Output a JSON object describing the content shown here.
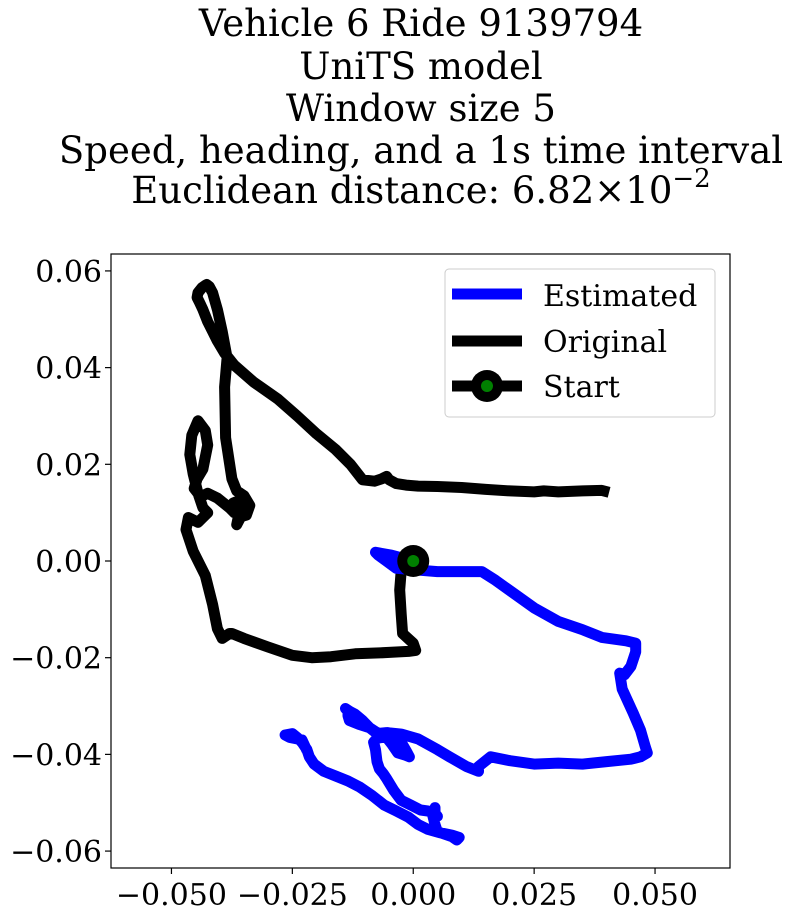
{
  "chart_data": {
    "type": "line",
    "title_lines": [
      "Vehicle 6 Ride 9139794",
      "UniTS model",
      "Window size 5",
      "Speed, heading, and a 1s time interval"
    ],
    "metric": {
      "label": "Euclidean distance: ",
      "mantissa": "6.82",
      "times": "×",
      "base": "10",
      "exponent": "−2"
    },
    "xlabel": "",
    "ylabel": "",
    "xlim": [
      -0.0625,
      0.0655
    ],
    "ylim": [
      -0.0635,
      0.0635
    ],
    "x_ticks": [
      -0.05,
      -0.025,
      0.0,
      0.025,
      0.05
    ],
    "x_tick_labels": [
      "−0.050",
      "−0.025",
      "0.000",
      "0.025",
      "0.050"
    ],
    "y_ticks": [
      -0.06,
      -0.04,
      -0.02,
      0.0,
      0.02,
      0.04,
      0.06
    ],
    "y_tick_labels": [
      "−0.06",
      "−0.04",
      "−0.02",
      "0.00",
      "0.02",
      "0.04",
      "0.06"
    ],
    "grid": false,
    "legend_position": "upper right",
    "colors": {
      "estimated": "#0000ff",
      "original": "#000000",
      "start_marker": "#008000"
    },
    "series": [
      {
        "name": "Original",
        "color": "#000000",
        "x": [
          0.0,
          -0.0025,
          -0.0028,
          -0.0025,
          -0.0022,
          0.0,
          0.0005,
          -0.001,
          -0.003,
          -0.007,
          -0.012,
          -0.017,
          -0.021,
          -0.025,
          -0.03,
          -0.035,
          -0.0375,
          -0.038,
          -0.0395,
          -0.0405,
          -0.0415,
          -0.043,
          -0.0455,
          -0.047,
          -0.0465,
          -0.0455,
          -0.0445,
          -0.0435,
          -0.0425,
          -0.0435,
          -0.0445,
          -0.0455,
          -0.0462,
          -0.0458,
          -0.0445,
          -0.043,
          -0.0425,
          -0.0435,
          -0.0447,
          -0.0453,
          -0.0445,
          -0.0435,
          -0.0425,
          -0.0405,
          -0.038,
          -0.037,
          -0.0372,
          -0.036,
          -0.0355,
          -0.036,
          -0.0365,
          -0.0362,
          -0.0345,
          -0.0338,
          -0.035,
          -0.0365,
          -0.0375,
          -0.0388,
          -0.039,
          -0.0385,
          -0.0395,
          -0.0405,
          -0.0415,
          -0.0422,
          -0.0427,
          -0.043,
          -0.0437,
          -0.0445,
          -0.0447,
          -0.0442,
          -0.0435,
          -0.0425,
          -0.0415,
          -0.0405,
          -0.039,
          -0.037,
          -0.033,
          -0.028,
          -0.024,
          -0.02,
          -0.016,
          -0.013,
          -0.0105,
          -0.008,
          -0.0065,
          -0.0055,
          -0.005,
          -0.0035,
          -0.0015,
          0.001,
          0.005,
          0.01,
          0.015,
          0.02,
          0.025,
          0.027,
          0.03,
          0.035,
          0.039,
          0.0405
        ],
        "y": [
          0.0,
          -0.002,
          -0.006,
          -0.011,
          -0.015,
          -0.017,
          -0.0185,
          -0.0187,
          -0.0188,
          -0.019,
          -0.0192,
          -0.0198,
          -0.02,
          -0.0195,
          -0.0178,
          -0.016,
          -0.015,
          -0.015,
          -0.016,
          -0.014,
          -0.009,
          -0.003,
          0.002,
          0.0065,
          0.009,
          0.0085,
          0.008,
          0.009,
          0.01,
          0.011,
          0.014,
          0.018,
          0.022,
          0.026,
          0.029,
          0.027,
          0.024,
          0.019,
          0.017,
          0.015,
          0.014,
          0.0135,
          0.014,
          0.013,
          0.011,
          0.01,
          0.012,
          0.0125,
          0.0095,
          0.0085,
          0.0075,
          0.009,
          0.0095,
          0.0115,
          0.0135,
          0.0145,
          0.017,
          0.0255,
          0.036,
          0.042,
          0.0475,
          0.052,
          0.0555,
          0.0568,
          0.0572,
          0.057,
          0.0565,
          0.0555,
          0.0545,
          0.0535,
          0.052,
          0.0495,
          0.0475,
          0.0455,
          0.043,
          0.0405,
          0.037,
          0.0335,
          0.03,
          0.0263,
          0.023,
          0.02,
          0.0168,
          0.0165,
          0.017,
          0.0175,
          0.0168,
          0.016,
          0.0157,
          0.0155,
          0.0154,
          0.0152,
          0.0148,
          0.0145,
          0.0143,
          0.0145,
          0.0143,
          0.0145,
          0.0146,
          0.0142
        ]
      },
      {
        "name": "Estimated",
        "color": "#0000ff",
        "x": [
          0.0,
          -0.0045,
          -0.0078,
          -0.0072,
          -0.0035,
          0.005,
          0.0142,
          0.017,
          0.0205,
          0.025,
          0.03,
          0.035,
          0.039,
          0.044,
          0.046,
          0.046,
          0.045,
          0.0437,
          0.0427,
          0.0432,
          0.0455,
          0.047,
          0.048,
          0.0484,
          0.047,
          0.045,
          0.04,
          0.035,
          0.03,
          0.025,
          0.02,
          0.016,
          0.0135,
          0.0135,
          0.011,
          0.0075,
          0.005,
          0.001,
          -0.0025,
          -0.0055,
          -0.0075,
          -0.009,
          -0.0105,
          -0.012,
          -0.013,
          -0.014,
          -0.0135,
          -0.0135,
          -0.0132,
          -0.0112,
          -0.009,
          -0.0075,
          -0.0065,
          -0.0055,
          -0.0052,
          -0.0045,
          -0.0035,
          -0.0025,
          -0.0015,
          -0.0008,
          -0.0015,
          -0.0032,
          -0.0045,
          -0.0055,
          -0.0065,
          -0.0075,
          -0.0082,
          -0.0078,
          -0.0075,
          -0.007,
          -0.0062,
          -0.0055,
          -0.004,
          -0.0025,
          -0.0005,
          0.0015,
          0.003,
          0.0045,
          0.005,
          0.0045,
          0.0045,
          0.004,
          0.0045,
          0.005,
          0.0065,
          0.008,
          0.009,
          0.0095,
          0.008,
          0.0055,
          0.003,
          0.001,
          -0.001,
          -0.0035,
          -0.006,
          -0.0085,
          -0.011,
          -0.0135,
          -0.016,
          -0.0185,
          -0.0205,
          -0.0215,
          -0.022,
          -0.023,
          -0.024,
          -0.025,
          -0.0265,
          -0.0255,
          -0.023,
          -0.022
        ],
        "y": [
          0.0,
          0.0012,
          0.0018,
          0.0012,
          -0.0015,
          -0.0022,
          -0.0022,
          -0.004,
          -0.0065,
          -0.0097,
          -0.0125,
          -0.0142,
          -0.0158,
          -0.0165,
          -0.017,
          -0.0188,
          -0.0218,
          -0.0235,
          -0.0232,
          -0.0265,
          -0.0315,
          -0.035,
          -0.0385,
          -0.0397,
          -0.0405,
          -0.041,
          -0.0415,
          -0.042,
          -0.0418,
          -0.042,
          -0.0413,
          -0.0405,
          -0.0425,
          -0.0435,
          -0.0425,
          -0.0405,
          -0.039,
          -0.0368,
          -0.0358,
          -0.0355,
          -0.0357,
          -0.0345,
          -0.033,
          -0.0317,
          -0.0312,
          -0.0305,
          -0.031,
          -0.032,
          -0.033,
          -0.0338,
          -0.0345,
          -0.0355,
          -0.036,
          -0.0365,
          -0.0355,
          -0.0358,
          -0.036,
          -0.0375,
          -0.0392,
          -0.0405,
          -0.0402,
          -0.0397,
          -0.0378,
          -0.0365,
          -0.0365,
          -0.0367,
          -0.0375,
          -0.039,
          -0.0415,
          -0.043,
          -0.044,
          -0.045,
          -0.0475,
          -0.0495,
          -0.0505,
          -0.0515,
          -0.0517,
          -0.0522,
          -0.0528,
          -0.0525,
          -0.051,
          -0.0525,
          -0.0545,
          -0.056,
          -0.0565,
          -0.057,
          -0.0577,
          -0.0572,
          -0.0567,
          -0.0562,
          -0.0555,
          -0.0545,
          -0.053,
          -0.0517,
          -0.0505,
          -0.0485,
          -0.0468,
          -0.0455,
          -0.0445,
          -0.0435,
          -0.042,
          -0.0405,
          -0.039,
          -0.0375,
          -0.0365,
          -0.0357,
          -0.036,
          -0.0365,
          -0.037,
          -0.0392
        ]
      }
    ],
    "start_point": {
      "name": "Start",
      "x": 0.0,
      "y": 0.0
    },
    "legend_entries": [
      "Estimated",
      "Original",
      "Start"
    ]
  }
}
